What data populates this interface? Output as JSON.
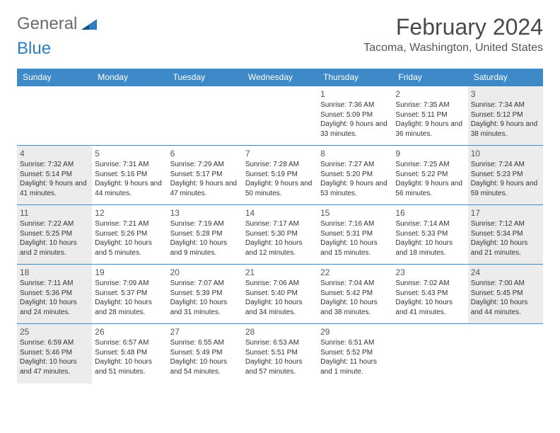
{
  "logo": {
    "part1": "General",
    "part2": "Blue"
  },
  "title": "February 2024",
  "location": "Tacoma, Washington, United States",
  "colors": {
    "header_bg": "#3e8ac8",
    "header_text": "#ffffff",
    "weekend_bg": "#ececec",
    "border": "#3e8ac8",
    "title_color": "#4a4a4a",
    "logo_gray": "#6b6b6b",
    "logo_blue": "#2d7cc0"
  },
  "weekdays": [
    "Sunday",
    "Monday",
    "Tuesday",
    "Wednesday",
    "Thursday",
    "Friday",
    "Saturday"
  ],
  "weeks": [
    [
      null,
      null,
      null,
      null,
      {
        "day": "1",
        "sunrise": "Sunrise: 7:36 AM",
        "sunset": "Sunset: 5:09 PM",
        "daylight": "Daylight: 9 hours and 33 minutes."
      },
      {
        "day": "2",
        "sunrise": "Sunrise: 7:35 AM",
        "sunset": "Sunset: 5:11 PM",
        "daylight": "Daylight: 9 hours and 36 minutes."
      },
      {
        "day": "3",
        "sunrise": "Sunrise: 7:34 AM",
        "sunset": "Sunset: 5:12 PM",
        "daylight": "Daylight: 9 hours and 38 minutes."
      }
    ],
    [
      {
        "day": "4",
        "sunrise": "Sunrise: 7:32 AM",
        "sunset": "Sunset: 5:14 PM",
        "daylight": "Daylight: 9 hours and 41 minutes."
      },
      {
        "day": "5",
        "sunrise": "Sunrise: 7:31 AM",
        "sunset": "Sunset: 5:16 PM",
        "daylight": "Daylight: 9 hours and 44 minutes."
      },
      {
        "day": "6",
        "sunrise": "Sunrise: 7:29 AM",
        "sunset": "Sunset: 5:17 PM",
        "daylight": "Daylight: 9 hours and 47 minutes."
      },
      {
        "day": "7",
        "sunrise": "Sunrise: 7:28 AM",
        "sunset": "Sunset: 5:19 PM",
        "daylight": "Daylight: 9 hours and 50 minutes."
      },
      {
        "day": "8",
        "sunrise": "Sunrise: 7:27 AM",
        "sunset": "Sunset: 5:20 PM",
        "daylight": "Daylight: 9 hours and 53 minutes."
      },
      {
        "day": "9",
        "sunrise": "Sunrise: 7:25 AM",
        "sunset": "Sunset: 5:22 PM",
        "daylight": "Daylight: 9 hours and 56 minutes."
      },
      {
        "day": "10",
        "sunrise": "Sunrise: 7:24 AM",
        "sunset": "Sunset: 5:23 PM",
        "daylight": "Daylight: 9 hours and 59 minutes."
      }
    ],
    [
      {
        "day": "11",
        "sunrise": "Sunrise: 7:22 AM",
        "sunset": "Sunset: 5:25 PM",
        "daylight": "Daylight: 10 hours and 2 minutes."
      },
      {
        "day": "12",
        "sunrise": "Sunrise: 7:21 AM",
        "sunset": "Sunset: 5:26 PM",
        "daylight": "Daylight: 10 hours and 5 minutes."
      },
      {
        "day": "13",
        "sunrise": "Sunrise: 7:19 AM",
        "sunset": "Sunset: 5:28 PM",
        "daylight": "Daylight: 10 hours and 9 minutes."
      },
      {
        "day": "14",
        "sunrise": "Sunrise: 7:17 AM",
        "sunset": "Sunset: 5:30 PM",
        "daylight": "Daylight: 10 hours and 12 minutes."
      },
      {
        "day": "15",
        "sunrise": "Sunrise: 7:16 AM",
        "sunset": "Sunset: 5:31 PM",
        "daylight": "Daylight: 10 hours and 15 minutes."
      },
      {
        "day": "16",
        "sunrise": "Sunrise: 7:14 AM",
        "sunset": "Sunset: 5:33 PM",
        "daylight": "Daylight: 10 hours and 18 minutes."
      },
      {
        "day": "17",
        "sunrise": "Sunrise: 7:12 AM",
        "sunset": "Sunset: 5:34 PM",
        "daylight": "Daylight: 10 hours and 21 minutes."
      }
    ],
    [
      {
        "day": "18",
        "sunrise": "Sunrise: 7:11 AM",
        "sunset": "Sunset: 5:36 PM",
        "daylight": "Daylight: 10 hours and 24 minutes."
      },
      {
        "day": "19",
        "sunrise": "Sunrise: 7:09 AM",
        "sunset": "Sunset: 5:37 PM",
        "daylight": "Daylight: 10 hours and 28 minutes."
      },
      {
        "day": "20",
        "sunrise": "Sunrise: 7:07 AM",
        "sunset": "Sunset: 5:39 PM",
        "daylight": "Daylight: 10 hours and 31 minutes."
      },
      {
        "day": "21",
        "sunrise": "Sunrise: 7:06 AM",
        "sunset": "Sunset: 5:40 PM",
        "daylight": "Daylight: 10 hours and 34 minutes."
      },
      {
        "day": "22",
        "sunrise": "Sunrise: 7:04 AM",
        "sunset": "Sunset: 5:42 PM",
        "daylight": "Daylight: 10 hours and 38 minutes."
      },
      {
        "day": "23",
        "sunrise": "Sunrise: 7:02 AM",
        "sunset": "Sunset: 5:43 PM",
        "daylight": "Daylight: 10 hours and 41 minutes."
      },
      {
        "day": "24",
        "sunrise": "Sunrise: 7:00 AM",
        "sunset": "Sunset: 5:45 PM",
        "daylight": "Daylight: 10 hours and 44 minutes."
      }
    ],
    [
      {
        "day": "25",
        "sunrise": "Sunrise: 6:59 AM",
        "sunset": "Sunset: 5:46 PM",
        "daylight": "Daylight: 10 hours and 47 minutes."
      },
      {
        "day": "26",
        "sunrise": "Sunrise: 6:57 AM",
        "sunset": "Sunset: 5:48 PM",
        "daylight": "Daylight: 10 hours and 51 minutes."
      },
      {
        "day": "27",
        "sunrise": "Sunrise: 6:55 AM",
        "sunset": "Sunset: 5:49 PM",
        "daylight": "Daylight: 10 hours and 54 minutes."
      },
      {
        "day": "28",
        "sunrise": "Sunrise: 6:53 AM",
        "sunset": "Sunset: 5:51 PM",
        "daylight": "Daylight: 10 hours and 57 minutes."
      },
      {
        "day": "29",
        "sunrise": "Sunrise: 6:51 AM",
        "sunset": "Sunset: 5:52 PM",
        "daylight": "Daylight: 11 hours and 1 minute."
      },
      null,
      null
    ]
  ]
}
